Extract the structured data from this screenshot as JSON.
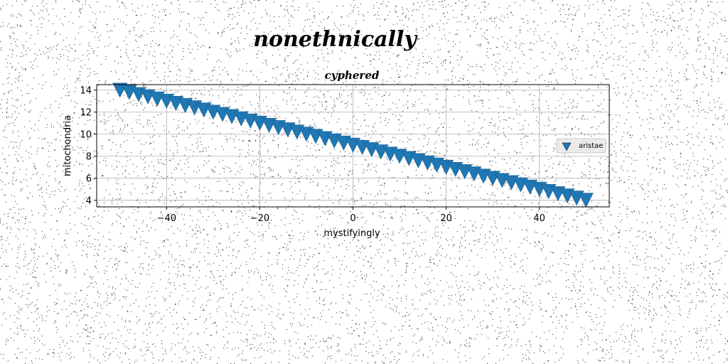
{
  "title": "nonethnically",
  "chart_data": {
    "type": "scatter",
    "title": "cyphered",
    "xlabel": "mystifyingly",
    "ylabel": "mitochondria",
    "xlim": [
      -55,
      55
    ],
    "ylim": [
      3.4,
      14.5
    ],
    "xticks": [
      -40,
      -20,
      0,
      20,
      40
    ],
    "xtick_labels": [
      "−40",
      "−20",
      "0",
      "20",
      "40"
    ],
    "yticks": [
      4,
      6,
      8,
      10,
      12,
      14
    ],
    "ytick_labels": [
      "4",
      "6",
      "8",
      "10",
      "12",
      "14"
    ],
    "grid": true,
    "legend": {
      "position": "center-right",
      "entries": [
        "aristae"
      ]
    },
    "marker": "triangle-down",
    "series": [
      {
        "name": "aristae",
        "color": "#1f77b4",
        "x": [
          -50.0,
          -48.0,
          -46.0,
          -44.0,
          -42.0,
          -40.0,
          -38.0,
          -36.0,
          -34.0,
          -32.0,
          -30.0,
          -28.0,
          -26.0,
          -24.0,
          -22.0,
          -20.0,
          -18.0,
          -16.0,
          -14.0,
          -12.0,
          -10.0,
          -8.0,
          -6.0,
          -4.0,
          -2.0,
          0.0,
          2.0,
          4.0,
          6.0,
          8.0,
          10.0,
          12.0,
          14.0,
          16.0,
          18.0,
          20.0,
          22.0,
          24.0,
          26.0,
          28.0,
          30.0,
          32.0,
          34.0,
          36.0,
          38.0,
          40.0,
          42.0,
          44.0,
          46.0,
          48.0,
          50.0
        ],
        "y": [
          14.0,
          13.8,
          13.6,
          13.4,
          13.2,
          13.0,
          12.8,
          12.6,
          12.4,
          12.2,
          12.0,
          11.8,
          11.6,
          11.4,
          11.2,
          11.0,
          10.8,
          10.6,
          10.4,
          10.2,
          10.0,
          9.8,
          9.6,
          9.4,
          9.2,
          9.0,
          8.8,
          8.6,
          8.4,
          8.2,
          8.0,
          7.8,
          7.6,
          7.4,
          7.2,
          7.0,
          6.8,
          6.6,
          6.4,
          6.2,
          6.0,
          5.8,
          5.6,
          5.4,
          5.2,
          5.0,
          4.8,
          4.6,
          4.4,
          4.2,
          4.0
        ]
      }
    ]
  }
}
